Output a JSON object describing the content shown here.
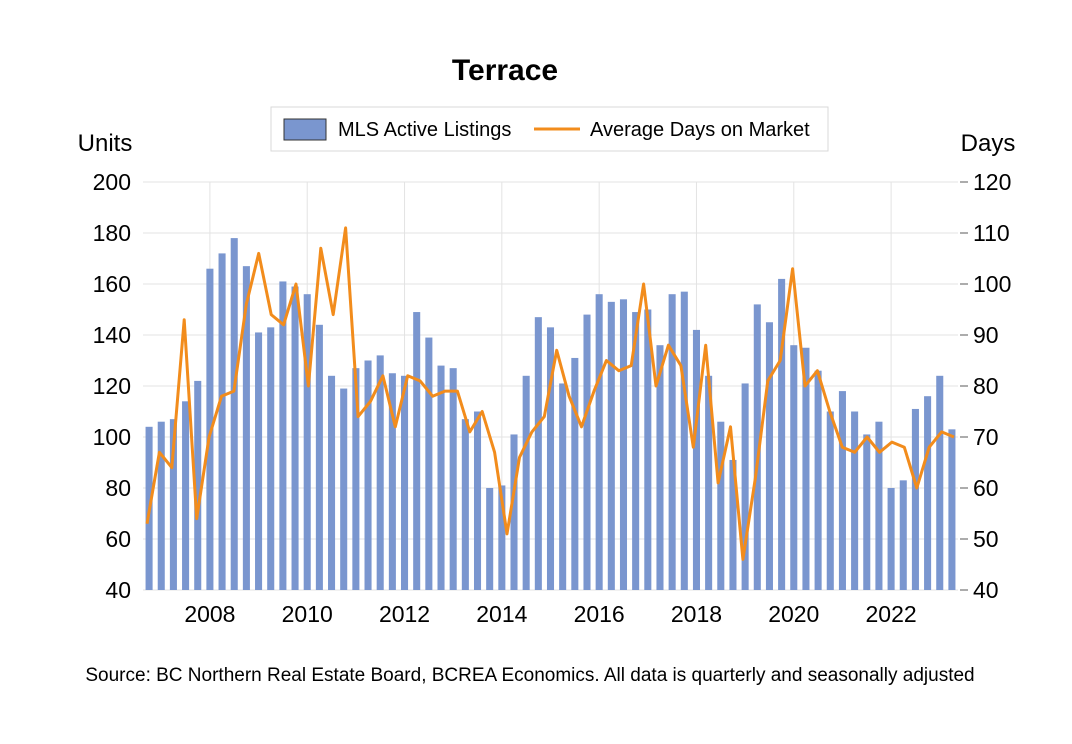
{
  "chart_data": {
    "type": "bar+line",
    "title": "Terrace",
    "source": "Source: BC Northern Real Estate Board, BCREA Economics. All data is quarterly and seasonally adjusted",
    "left_axis": {
      "label": "Units",
      "ylim": [
        40,
        200
      ],
      "ticks": [
        "40",
        "60",
        "80",
        "100",
        "120",
        "140",
        "160",
        "180",
        "200"
      ]
    },
    "right_axis": {
      "label": "Days",
      "ylim": [
        40,
        120
      ],
      "ticks": [
        "40",
        "50",
        "60",
        "70",
        "80",
        "90",
        "100",
        "110",
        "120"
      ]
    },
    "x_tick_labels": [
      "2008",
      "2010",
      "2012",
      "2014",
      "2016",
      "2018",
      "2020",
      "2022"
    ],
    "grid": true,
    "legend": {
      "placement": "top-center",
      "entries": [
        "MLS Active Listings",
        "Average Days on Market"
      ]
    },
    "series": [
      {
        "name": "MLS Active Listings",
        "type": "bar",
        "axis": "left",
        "color": "#7a96cf",
        "values": [
          104,
          106,
          107,
          114,
          122,
          166,
          172,
          178,
          167,
          141,
          143,
          161,
          159,
          156,
          144,
          124,
          119,
          127,
          130,
          132,
          125,
          124,
          149,
          139,
          128,
          127,
          107,
          110,
          80,
          81,
          101,
          124,
          147,
          143,
          121,
          131,
          148,
          156,
          153,
          154,
          149,
          150,
          136,
          156,
          157,
          142,
          124,
          106,
          91,
          121,
          152,
          145,
          162,
          136,
          135,
          126,
          110,
          118,
          110,
          101,
          106,
          80,
          83,
          111,
          116,
          124,
          103
        ]
      },
      {
        "name": "Average Days on Market",
        "type": "line",
        "axis": "right",
        "color": "#f28c1c",
        "values": [
          53,
          67,
          64,
          93,
          54,
          70,
          78,
          79,
          96,
          106,
          94,
          92,
          100,
          80,
          107,
          94,
          111,
          74,
          77,
          82,
          72,
          82,
          81,
          78,
          79,
          79,
          71,
          75,
          67,
          51,
          66,
          71,
          74,
          87,
          78,
          72,
          79,
          85,
          83,
          84,
          100,
          80,
          88,
          84,
          68,
          88,
          61,
          72,
          46,
          62,
          81,
          85,
          103,
          80,
          83,
          75,
          68,
          67,
          70,
          67,
          69,
          68,
          60,
          68,
          71,
          70
        ]
      }
    ]
  }
}
